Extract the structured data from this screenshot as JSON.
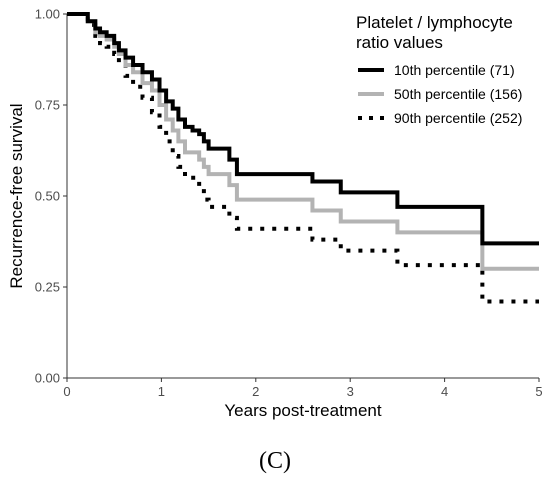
{
  "chart_data": {
    "type": "line",
    "subtype": "step",
    "xlabel": "Years post-treatment",
    "ylabel": "Recurrence-free survival",
    "xlim": [
      0,
      5
    ],
    "ylim": [
      0,
      1
    ],
    "x_ticks": [
      0,
      1,
      2,
      3,
      4,
      5
    ],
    "y_ticks": [
      0.0,
      0.25,
      0.5,
      0.75,
      1.0
    ],
    "x_tick_labels": [
      "0",
      "1",
      "2",
      "3",
      "4",
      "5"
    ],
    "y_tick_labels": [
      "0.00",
      "0.25",
      "0.50",
      "0.75",
      "1.00"
    ],
    "grid": false,
    "legend": {
      "title_lines": [
        "Platelet / lymphocyte",
        "ratio values"
      ],
      "placement": "top-right"
    },
    "series": [
      {
        "name": "10th percentile (71)",
        "color": "#000000",
        "line_style": "solid",
        "points": [
          [
            0.0,
            1.0
          ],
          [
            0.22,
            0.98
          ],
          [
            0.3,
            0.96
          ],
          [
            0.35,
            0.95
          ],
          [
            0.42,
            0.94
          ],
          [
            0.5,
            0.92
          ],
          [
            0.55,
            0.9
          ],
          [
            0.62,
            0.88
          ],
          [
            0.7,
            0.86
          ],
          [
            0.8,
            0.84
          ],
          [
            0.9,
            0.82
          ],
          [
            0.98,
            0.79
          ],
          [
            1.05,
            0.76
          ],
          [
            1.12,
            0.74
          ],
          [
            1.18,
            0.71
          ],
          [
            1.25,
            0.69
          ],
          [
            1.33,
            0.68
          ],
          [
            1.4,
            0.67
          ],
          [
            1.45,
            0.65
          ],
          [
            1.5,
            0.63
          ],
          [
            1.72,
            0.6
          ],
          [
            1.8,
            0.56
          ],
          [
            2.6,
            0.54
          ],
          [
            2.9,
            0.51
          ],
          [
            3.5,
            0.47
          ],
          [
            4.4,
            0.37
          ],
          [
            5.0,
            0.37
          ]
        ]
      },
      {
        "name": "50th percentile (156)",
        "color": "#b3b3b3",
        "line_style": "solid",
        "points": [
          [
            0.0,
            1.0
          ],
          [
            0.22,
            0.98
          ],
          [
            0.3,
            0.95
          ],
          [
            0.35,
            0.94
          ],
          [
            0.42,
            0.93
          ],
          [
            0.5,
            0.91
          ],
          [
            0.55,
            0.89
          ],
          [
            0.62,
            0.86
          ],
          [
            0.7,
            0.84
          ],
          [
            0.8,
            0.81
          ],
          [
            0.9,
            0.79
          ],
          [
            0.98,
            0.75
          ],
          [
            1.05,
            0.71
          ],
          [
            1.12,
            0.68
          ],
          [
            1.18,
            0.65
          ],
          [
            1.25,
            0.62
          ],
          [
            1.4,
            0.6
          ],
          [
            1.45,
            0.58
          ],
          [
            1.5,
            0.56
          ],
          [
            1.72,
            0.53
          ],
          [
            1.8,
            0.49
          ],
          [
            2.6,
            0.46
          ],
          [
            2.9,
            0.43
          ],
          [
            3.5,
            0.4
          ],
          [
            4.4,
            0.3
          ],
          [
            5.0,
            0.3
          ]
        ]
      },
      {
        "name": "90th percentile (252)",
        "color": "#000000",
        "line_style": "dotted",
        "points": [
          [
            0.0,
            1.0
          ],
          [
            0.22,
            0.97
          ],
          [
            0.3,
            0.94
          ],
          [
            0.35,
            0.92
          ],
          [
            0.42,
            0.91
          ],
          [
            0.5,
            0.89
          ],
          [
            0.55,
            0.86
          ],
          [
            0.62,
            0.83
          ],
          [
            0.7,
            0.8
          ],
          [
            0.8,
            0.77
          ],
          [
            0.9,
            0.73
          ],
          [
            0.98,
            0.69
          ],
          [
            1.05,
            0.65
          ],
          [
            1.12,
            0.61
          ],
          [
            1.18,
            0.58
          ],
          [
            1.25,
            0.55
          ],
          [
            1.4,
            0.52
          ],
          [
            1.45,
            0.49
          ],
          [
            1.5,
            0.47
          ],
          [
            1.72,
            0.44
          ],
          [
            1.8,
            0.41
          ],
          [
            2.6,
            0.38
          ],
          [
            2.9,
            0.35
          ],
          [
            3.5,
            0.31
          ],
          [
            4.4,
            0.21
          ],
          [
            5.0,
            0.21
          ]
        ]
      }
    ]
  },
  "figure": {
    "panel_label": "(C)"
  }
}
